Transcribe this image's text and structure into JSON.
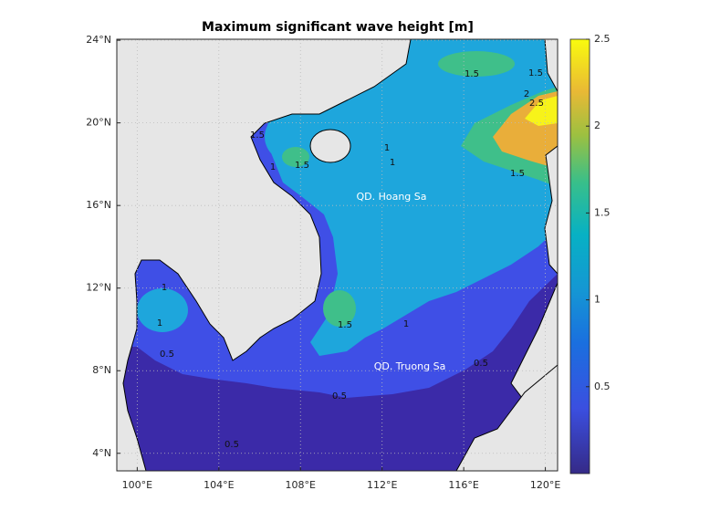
{
  "map": {
    "title": "Maximum significant wave height [m]",
    "xlim": [
      99,
      120.6
    ],
    "ylim": [
      3.15,
      24.05
    ],
    "xticks": [
      {
        "value": 100,
        "label": "100°E"
      },
      {
        "value": 104,
        "label": "104°E"
      },
      {
        "value": 108,
        "label": "108°E"
      },
      {
        "value": 112,
        "label": "112°E"
      },
      {
        "value": 116,
        "label": "116°E"
      },
      {
        "value": 120,
        "label": "120°E"
      }
    ],
    "yticks": [
      {
        "value": 4,
        "label": "4°N"
      },
      {
        "value": 8,
        "label": "8°N"
      },
      {
        "value": 12,
        "label": "12°N"
      },
      {
        "value": 16,
        "label": "16°N"
      },
      {
        "value": 20,
        "label": "20°N"
      },
      {
        "value": 24,
        "label": "24°N"
      }
    ],
    "grid": true,
    "colorbar": {
      "clim": [
        0,
        2.5
      ],
      "ticks": [
        0.5,
        1,
        1.5,
        2,
        2.5
      ]
    },
    "annotations": [
      "QD. Hoang Sa",
      "QD. Truong Sa"
    ],
    "contour_labels": [
      1.5,
      1.5,
      2,
      2.5,
      1.5,
      1,
      1,
      1.5,
      1,
      1.5,
      1,
      1,
      1.5,
      1,
      0.5,
      0.5,
      0.5,
      0.5
    ]
  }
}
